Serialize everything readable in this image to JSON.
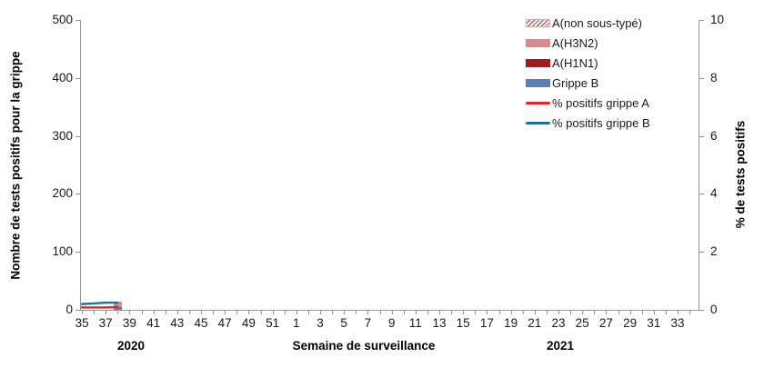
{
  "chart_data": {
    "type": "bar",
    "subtype": "stacked-bars-with-percent-lines",
    "x_axis": {
      "title": "Semaine de surveillance",
      "weeks": [
        35,
        36,
        37,
        38,
        39,
        40,
        41,
        42,
        43,
        44,
        45,
        46,
        47,
        48,
        49,
        50,
        51,
        52,
        1,
        2,
        3,
        4,
        5,
        6,
        7,
        8,
        9,
        10,
        11,
        12,
        13,
        14,
        15,
        16,
        17,
        18,
        19,
        20,
        21,
        22,
        23,
        24,
        25,
        26,
        27,
        28,
        29,
        30,
        31,
        32,
        33,
        34
      ],
      "label_every": 2,
      "labeled_weeks": [
        35,
        37,
        39,
        41,
        43,
        45,
        47,
        49,
        51,
        1,
        3,
        5,
        7,
        9,
        11,
        13,
        15,
        17,
        19,
        21,
        23,
        25,
        27,
        29,
        31,
        33
      ],
      "year_labels": [
        {
          "text": "2020"
        },
        {
          "text": "2021"
        }
      ]
    },
    "left_axis": {
      "title": "Nombre de tests positifs pour la grippe",
      "min": 0,
      "max": 500,
      "ticks": [
        0,
        100,
        200,
        300,
        400,
        500
      ]
    },
    "right_axis": {
      "title": "% de tests positifs",
      "min": 0,
      "max": 10,
      "ticks": [
        0,
        2,
        4,
        6,
        8,
        10
      ]
    },
    "bar_series": [
      {
        "name": "A(non sous-typé)",
        "swatch": "hatched",
        "color": "#c4575c",
        "points": []
      },
      {
        "name": "A(H3N2)",
        "swatch": "solid",
        "color": "#d68b8e",
        "points": [
          {
            "week": 38,
            "value": 10
          }
        ]
      },
      {
        "name": "A(H1N1)",
        "swatch": "solid",
        "color": "#a21a20",
        "points": []
      },
      {
        "name": "Grippe B",
        "swatch": "solid",
        "color": "#5b7fb5",
        "points": [
          {
            "week": 38,
            "value": 4
          }
        ]
      }
    ],
    "line_series": [
      {
        "name": "% positifs grippe A",
        "color": "#e02527",
        "points": [
          {
            "week": 35,
            "value": 0.08
          },
          {
            "week": 36,
            "value": 0.08
          },
          {
            "week": 37,
            "value": 0.08
          },
          {
            "week": 38,
            "value": 0.1
          }
        ]
      },
      {
        "name": "% positifs grippe B",
        "color": "#1e6ea6",
        "points": [
          {
            "week": 35,
            "value": 0.2
          },
          {
            "week": 36,
            "value": 0.22
          },
          {
            "week": 37,
            "value": 0.25
          },
          {
            "week": 38,
            "value": 0.25
          }
        ]
      }
    ],
    "legend_position": "top-right-inside",
    "grid": "off"
  },
  "colors": {
    "axis": "#969696",
    "text": "#1a1a1a",
    "background": "#ffffff"
  }
}
